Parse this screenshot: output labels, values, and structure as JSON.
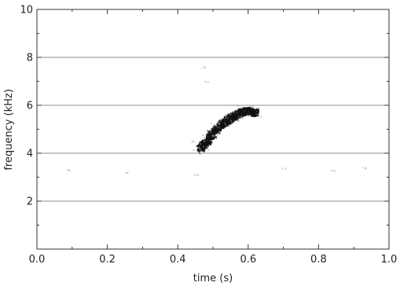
{
  "chart_data": {
    "type": "heatmap",
    "title": "",
    "xlabel": "time (s)",
    "ylabel": "frequency (kHz)",
    "xlim": [
      0.0,
      1.0
    ],
    "ylim": [
      0,
      10
    ],
    "x_ticks": [
      "0.0",
      "0.2",
      "0.4",
      "0.6",
      "0.8",
      "1.0"
    ],
    "x_tick_values": [
      0.0,
      0.2,
      0.4,
      0.6,
      0.8,
      1.0
    ],
    "y_ticks": [
      "2",
      "4",
      "6",
      "8",
      "10"
    ],
    "y_tick_values": [
      2,
      4,
      6,
      8,
      10
    ],
    "grid": "horizontal",
    "colors": {
      "signal": "#111111",
      "faint": "#bbbbbb",
      "grid": "#666666",
      "frame": "#333333"
    },
    "signal": {
      "description_points": [
        {
          "t": 0.46,
          "f": 4.2
        },
        {
          "t": 0.48,
          "f": 4.5
        },
        {
          "t": 0.5,
          "f": 4.9
        },
        {
          "t": 0.52,
          "f": 5.2
        },
        {
          "t": 0.54,
          "f": 5.4
        },
        {
          "t": 0.56,
          "f": 5.6
        },
        {
          "t": 0.58,
          "f": 5.75
        },
        {
          "t": 0.6,
          "f": 5.8
        },
        {
          "t": 0.62,
          "f": 5.7
        }
      ],
      "intensity": 1.0
    },
    "faint_spots": [
      {
        "t": 0.47,
        "f": 7.6
      },
      {
        "t": 0.48,
        "f": 7.0
      },
      {
        "t": 0.45,
        "f": 3.1
      },
      {
        "t": 0.44,
        "f": 4.5
      },
      {
        "t": 0.09,
        "f": 3.3
      },
      {
        "t": 0.25,
        "f": 3.2
      },
      {
        "t": 0.7,
        "f": 3.4
      },
      {
        "t": 0.84,
        "f": 3.3
      },
      {
        "t": 0.93,
        "f": 3.4
      }
    ]
  }
}
